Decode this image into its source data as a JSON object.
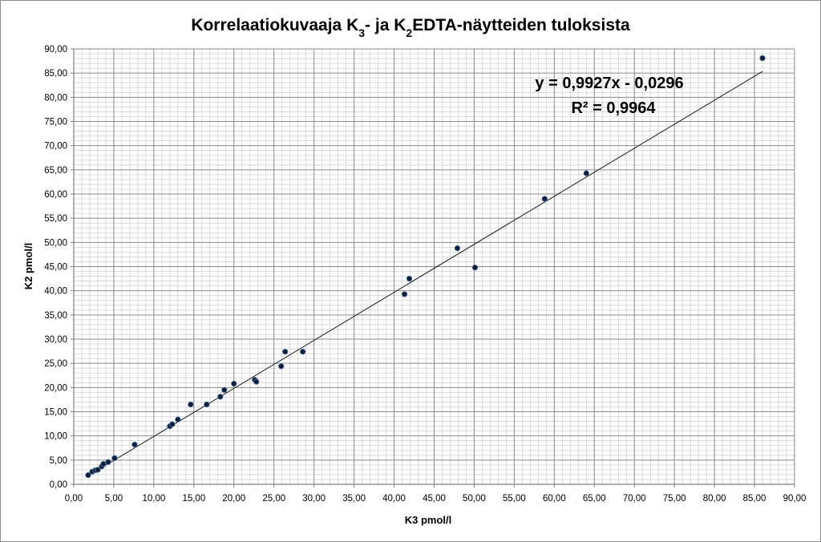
{
  "chart_data": {
    "type": "scatter",
    "title": "Korrelaatiokuvaaja K3- ja K2EDTA-näytteiden tuloksista",
    "title_parts": {
      "p1": "Korrelaatiokuvaaja K",
      "sub1": "3",
      "p2": "- ja K",
      "sub2": "2",
      "p3": "EDTA-näytteiden tuloksista"
    },
    "xlabel": "K3 pmol/l",
    "ylabel": "K2 pmol/l",
    "xlim": [
      0,
      90
    ],
    "ylim": [
      0,
      90
    ],
    "x_major_step": 5,
    "y_major_step": 5,
    "x_minor_step": 1,
    "y_minor_step": 1,
    "x_tick_labels": [
      "0,00",
      "5,00",
      "10,00",
      "15,00",
      "20,00",
      "25,00",
      "30,00",
      "35,00",
      "40,00",
      "45,00",
      "50,00",
      "55,00",
      "60,00",
      "65,00",
      "70,00",
      "75,00",
      "80,00",
      "85,00",
      "90,00"
    ],
    "y_tick_labels": [
      "0,00",
      "5,00",
      "10,00",
      "15,00",
      "20,00",
      "25,00",
      "30,00",
      "35,00",
      "40,00",
      "45,00",
      "50,00",
      "55,00",
      "60,00",
      "65,00",
      "70,00",
      "75,00",
      "80,00",
      "85,00",
      "90,00"
    ],
    "grid": true,
    "trendline": {
      "type": "linear",
      "slope": 0.9927,
      "intercept": -0.0296,
      "x_range": [
        1.8,
        86.0
      ],
      "equation": "y = 0,9927x - 0,0296",
      "r2": "R² = 0,9964"
    },
    "series": [
      {
        "points": [
          [
            1.8,
            1.9
          ],
          [
            2.3,
            2.6
          ],
          [
            2.7,
            2.9
          ],
          [
            3.0,
            3.0
          ],
          [
            3.5,
            3.7
          ],
          [
            3.7,
            4.2
          ],
          [
            4.3,
            4.6
          ],
          [
            5.1,
            5.4
          ],
          [
            7.6,
            8.2
          ],
          [
            12.0,
            12.0
          ],
          [
            12.3,
            12.4
          ],
          [
            13.0,
            13.4
          ],
          [
            14.6,
            16.5
          ],
          [
            16.6,
            16.5
          ],
          [
            18.3,
            18.1
          ],
          [
            18.8,
            19.5
          ],
          [
            20.0,
            20.8
          ],
          [
            22.6,
            21.6
          ],
          [
            22.8,
            21.2
          ],
          [
            25.9,
            24.4
          ],
          [
            26.4,
            27.4
          ],
          [
            28.6,
            27.4
          ],
          [
            41.3,
            39.3
          ],
          [
            41.9,
            42.5
          ],
          [
            47.9,
            48.8
          ],
          [
            50.1,
            44.8
          ],
          [
            58.8,
            59.0
          ],
          [
            64.0,
            64.3
          ],
          [
            86.0,
            88.1
          ]
        ],
        "color": "#0b1f3d"
      }
    ]
  }
}
